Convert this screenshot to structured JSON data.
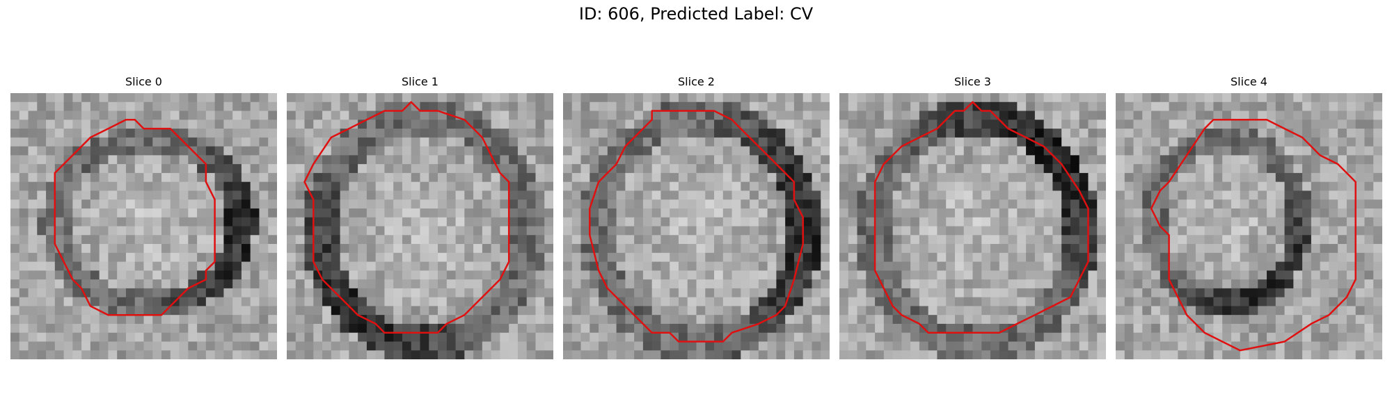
{
  "figure": {
    "title": "ID: 606, Predicted Label: CV"
  },
  "panels": [
    {
      "title": "Slice 0",
      "seed": 11,
      "image_description": "grayscale patch with bright oval centre, darker ring at right"
    },
    {
      "title": "Slice 1",
      "seed": 23,
      "image_description": "grayscale patch with large bright disc, dark rim at bottom-left"
    },
    {
      "title": "Slice 2",
      "seed": 37,
      "image_description": "grayscale patch with bright disc, dark rim at left and right"
    },
    {
      "title": "Slice 3",
      "seed": 51,
      "image_description": "grayscale patch with medium grey disc, dark band at top-right"
    },
    {
      "title": "Slice 4",
      "seed": 73,
      "image_description": "grayscale patch with bright blob at left, dark region bottom-right"
    }
  ],
  "colors": {
    "contour": "#e01010",
    "background": "#ffffff"
  }
}
